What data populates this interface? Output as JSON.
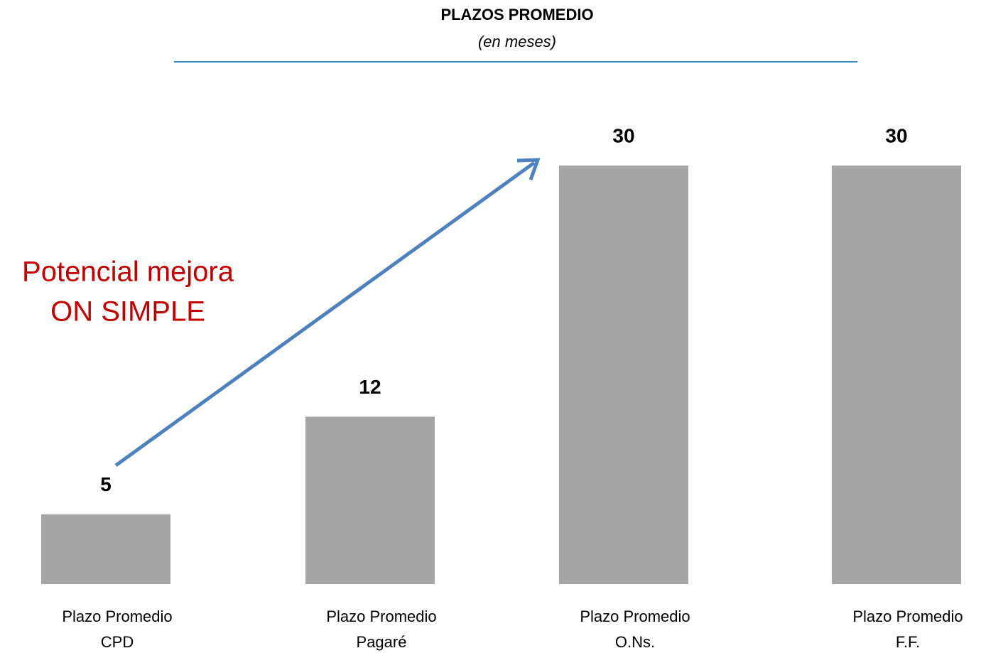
{
  "chart_data": {
    "type": "bar",
    "title": "PLAZOS PROMEDIO",
    "subtitle": "(en meses)",
    "categories": [
      [
        "Plazo Promedio",
        "CPD"
      ],
      [
        "Plazo Promedio",
        "Pagaré"
      ],
      [
        "Plazo Promedio",
        "O.Ns."
      ],
      [
        "Plazo Promedio",
        "F.F."
      ]
    ],
    "values": [
      5,
      12,
      30,
      30
    ],
    "color": "#a6a6a6",
    "annotation": [
      "Potencial mejora",
      "ON SIMPLE"
    ],
    "annotation_color": "#c00000",
    "arrow_color": "#4f81bd"
  }
}
